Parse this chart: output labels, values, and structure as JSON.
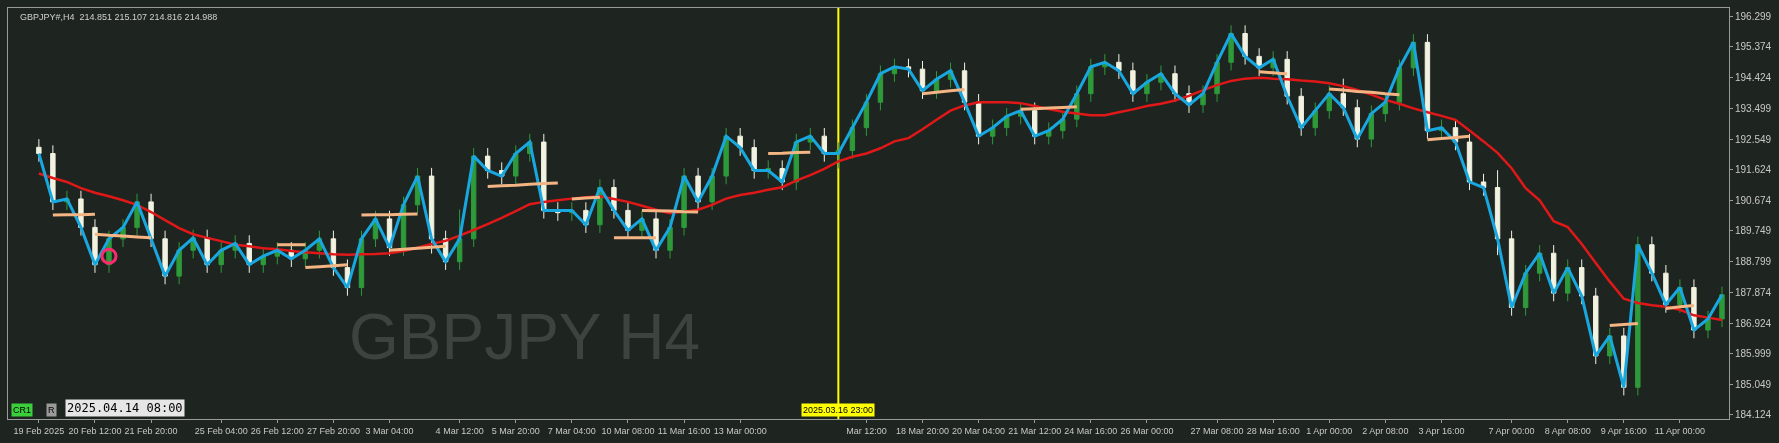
{
  "chart_data": {
    "type": "candlestick",
    "categories": [
      "19 Feb 2025",
      null,
      null,
      null,
      "20 Feb 12:00",
      null,
      null,
      null,
      "21 Feb 20:00",
      null,
      null,
      null,
      null,
      "25 Feb 04:00",
      null,
      null,
      null,
      "26 Feb 12:00",
      null,
      null,
      null,
      "27 Feb 20:00",
      null,
      null,
      null,
      "3 Mar 04:00",
      null,
      null,
      null,
      null,
      "4 Mar 12:00",
      null,
      null,
      null,
      "5 Mar 20:00",
      null,
      null,
      null,
      "7 Mar 04:00",
      null,
      null,
      null,
      "10 Mar 08:00",
      null,
      null,
      null,
      "11 Mar 16:00",
      null,
      null,
      null,
      "13 Mar 00:00",
      null,
      null,
      null,
      null,
      null,
      null,
      "2025.03.16 23:00",
      null,
      "Mar 12:00",
      null,
      null,
      null,
      "18 Mar 20:00",
      null,
      null,
      null,
      "20 Mar 04:00",
      null,
      null,
      null,
      "21 Mar 12:00",
      null,
      null,
      null,
      "24 Mar 16:00",
      null,
      null,
      null,
      "26 Mar 00:00",
      null,
      null,
      null,
      null,
      "27 Mar 08:00",
      null,
      null,
      null,
      "28 Mar 16:00",
      null,
      null,
      null,
      "1 Apr 00:00",
      null,
      null,
      null,
      "2 Apr 08:00",
      null,
      null,
      null,
      "3 Apr 16:00",
      null,
      null,
      null,
      null,
      "7 Apr 00:00",
      null,
      null,
      null,
      "8 Apr 08:00",
      null,
      null,
      null,
      "9 Apr 16:00",
      null,
      null,
      null,
      "11 Apr 00:00",
      null,
      null,
      null
    ],
    "ohlc": [
      [
        192.3,
        192.55,
        191.86,
        192.11
      ],
      [
        192.11,
        192.36,
        190.38,
        190.63
      ],
      [
        190.63,
        190.97,
        190.38,
        190.72
      ],
      [
        190.72,
        190.97,
        189.6,
        189.85
      ],
      [
        189.85,
        190.1,
        188.46,
        188.71
      ],
      [
        188.71,
        189.75,
        188.46,
        189.5
      ],
      [
        189.5,
        190.1,
        189.25,
        189.85
      ],
      [
        189.85,
        190.88,
        189.6,
        190.63
      ],
      [
        190.63,
        190.88,
        189.25,
        189.5
      ],
      [
        189.5,
        189.75,
        188.11,
        188.36
      ],
      [
        188.36,
        189.4,
        188.11,
        189.15
      ],
      [
        189.15,
        189.78,
        188.9,
        189.53
      ],
      [
        189.53,
        189.78,
        188.46,
        188.71
      ],
      [
        188.71,
        189.4,
        188.46,
        189.15
      ],
      [
        189.15,
        189.61,
        188.9,
        189.36
      ],
      [
        189.36,
        189.61,
        188.46,
        188.71
      ],
      [
        188.71,
        189.22,
        188.46,
        188.97
      ],
      [
        188.97,
        189.4,
        188.72,
        189.15
      ],
      [
        189.15,
        189.4,
        188.64,
        188.89
      ],
      [
        188.89,
        189.4,
        188.64,
        189.15
      ],
      [
        189.15,
        189.75,
        188.9,
        189.5
      ],
      [
        189.5,
        189.75,
        188.37,
        188.62
      ],
      [
        188.62,
        188.87,
        187.76,
        188.01
      ],
      [
        188.01,
        189.75,
        187.76,
        189.5
      ],
      [
        189.5,
        190.36,
        189.25,
        190.11
      ],
      [
        190.11,
        190.36,
        188.98,
        189.23
      ],
      [
        189.23,
        190.79,
        188.98,
        190.54
      ],
      [
        190.54,
        191.67,
        190.29,
        191.42
      ],
      [
        191.42,
        191.67,
        189.05,
        189.5
      ],
      [
        189.5,
        189.75,
        188.55,
        188.8
      ],
      [
        188.8,
        190.4,
        188.55,
        189.5
      ],
      [
        189.5,
        192.28,
        189.25,
        192.03
      ],
      [
        192.03,
        192.28,
        191.34,
        191.59
      ],
      [
        191.59,
        191.84,
        191.17,
        191.42
      ],
      [
        191.42,
        192.36,
        191.17,
        192.11
      ],
      [
        192.11,
        192.71,
        191.86,
        192.46
      ],
      [
        192.46,
        192.71,
        190.12,
        190.37
      ],
      [
        190.37,
        190.62,
        190.05,
        190.3
      ],
      [
        190.3,
        190.62,
        190.05,
        190.37
      ],
      [
        190.37,
        190.62,
        189.68,
        189.93
      ],
      [
        189.93,
        191.32,
        189.68,
        191.07
      ],
      [
        191.07,
        191.32,
        190.12,
        190.37
      ],
      [
        190.37,
        190.62,
        189.51,
        189.76
      ],
      [
        189.76,
        190.36,
        189.51,
        190.11
      ],
      [
        190.11,
        190.36,
        188.9,
        189.15
      ],
      [
        189.15,
        190.1,
        188.9,
        189.85
      ],
      [
        189.85,
        191.67,
        189.6,
        191.42
      ],
      [
        191.42,
        191.67,
        190.38,
        190.63
      ],
      [
        190.63,
        191.67,
        190.38,
        191.42
      ],
      [
        191.42,
        192.89,
        191.17,
        192.64
      ],
      [
        192.64,
        192.89,
        192.04,
        192.29
      ],
      [
        192.29,
        192.54,
        191.34,
        191.59
      ],
      [
        191.59,
        191.9,
        191.34,
        191.65
      ],
      [
        191.65,
        191.9,
        190.99,
        191.24
      ],
      [
        191.24,
        192.71,
        190.99,
        192.46
      ],
      [
        192.46,
        192.89,
        192.21,
        192.64
      ],
      [
        192.64,
        192.89,
        191.86,
        192.11
      ],
      [
        192.11,
        192.45,
        191.65,
        192.2
      ],
      [
        192.2,
        193.15,
        191.95,
        192.9
      ],
      [
        192.9,
        193.93,
        192.65,
        193.68
      ],
      [
        193.68,
        194.8,
        193.43,
        194.55
      ],
      [
        194.55,
        195.01,
        194.3,
        194.76
      ],
      [
        194.76,
        195.01,
        194.44,
        194.69
      ],
      [
        194.69,
        194.94,
        193.78,
        194.03
      ],
      [
        194.03,
        194.63,
        193.78,
        194.38
      ],
      [
        194.38,
        194.89,
        194.13,
        194.64
      ],
      [
        194.64,
        194.89,
        193.43,
        193.68
      ],
      [
        193.68,
        193.93,
        192.39,
        192.64
      ],
      [
        192.64,
        193.15,
        192.39,
        192.9
      ],
      [
        192.9,
        193.5,
        192.65,
        193.25
      ],
      [
        193.25,
        193.67,
        193.0,
        193.42
      ],
      [
        193.42,
        193.67,
        192.39,
        192.64
      ],
      [
        192.64,
        193.06,
        192.39,
        192.81
      ],
      [
        192.81,
        193.41,
        192.56,
        193.16
      ],
      [
        193.16,
        194.19,
        192.91,
        193.94
      ],
      [
        193.94,
        195.01,
        193.69,
        194.76
      ],
      [
        194.76,
        195.15,
        194.51,
        194.9
      ],
      [
        194.9,
        195.15,
        194.39,
        194.64
      ],
      [
        194.64,
        194.89,
        193.69,
        193.94
      ],
      [
        193.94,
        194.54,
        193.69,
        194.29
      ],
      [
        194.29,
        194.8,
        194.04,
        194.55
      ],
      [
        194.55,
        194.8,
        193.69,
        193.94
      ],
      [
        193.94,
        194.19,
        193.35,
        193.6
      ],
      [
        193.6,
        194.19,
        193.35,
        193.94
      ],
      [
        193.94,
        195.15,
        193.69,
        194.9
      ],
      [
        194.9,
        196.03,
        194.65,
        195.78
      ],
      [
        195.78,
        196.03,
        194.83,
        195.08
      ],
      [
        195.08,
        195.33,
        194.48,
        194.73
      ],
      [
        194.73,
        195.24,
        194.48,
        194.99
      ],
      [
        194.99,
        195.24,
        193.61,
        193.86
      ],
      [
        193.86,
        194.11,
        192.65,
        192.9
      ],
      [
        192.9,
        193.67,
        192.65,
        193.42
      ],
      [
        193.42,
        194.19,
        193.17,
        193.94
      ],
      [
        193.94,
        194.4,
        193.26,
        193.51
      ],
      [
        193.51,
        193.76,
        192.3,
        192.55
      ],
      [
        192.55,
        193.58,
        192.3,
        193.33
      ],
      [
        193.33,
        193.93,
        193.08,
        193.68
      ],
      [
        193.68,
        194.98,
        193.43,
        194.73
      ],
      [
        194.73,
        195.76,
        194.48,
        195.51
      ],
      [
        195.51,
        195.76,
        192.56,
        192.81
      ],
      [
        192.81,
        193.15,
        192.56,
        192.9
      ],
      [
        192.9,
        193.15,
        192.21,
        192.46
      ],
      [
        192.46,
        192.71,
        190.99,
        191.24
      ],
      [
        191.24,
        191.49,
        190.82,
        191.07
      ],
      [
        191.07,
        191.6,
        189.0,
        189.5
      ],
      [
        189.5,
        189.75,
        187.15,
        187.4
      ],
      [
        187.4,
        188.7,
        187.15,
        188.45
      ],
      [
        188.45,
        189.31,
        188.2,
        189.06
      ],
      [
        189.06,
        189.31,
        187.59,
        187.84
      ],
      [
        187.84,
        188.87,
        187.59,
        188.62
      ],
      [
        188.62,
        188.87,
        187.5,
        187.75
      ],
      [
        187.75,
        188.0,
        185.67,
        185.92
      ],
      [
        185.92,
        186.78,
        185.67,
        186.53
      ],
      [
        186.53,
        186.78,
        184.71,
        184.96
      ],
      [
        184.96,
        189.57,
        184.71,
        189.32
      ],
      [
        189.32,
        189.57,
        188.2,
        188.45
      ],
      [
        188.45,
        188.7,
        187.24,
        187.49
      ],
      [
        187.49,
        188.26,
        187.24,
        188.01
      ],
      [
        188.01,
        188.26,
        186.46,
        186.71
      ],
      [
        186.71,
        187.3,
        186.46,
        187.05
      ],
      [
        187.05,
        188.04,
        186.8,
        187.79
      ]
    ],
    "colors": [
      "#f2f2e0",
      "#f2f2e0",
      "#2e9a3a",
      "#f2f2e0",
      "#f2f2e0",
      "#2e9a3a",
      "#2e9a3a",
      "#2e9a3a",
      "#f2f2e0",
      "#f2f2e0",
      "#2e9a3a",
      "#2e9a3a",
      "#f2f2e0",
      "#2e9a3a",
      "#2e9a3a",
      "#f2f2e0",
      "#2e9a3a",
      "#2e9a3a",
      "#f2f2e0",
      "#2e9a3a",
      "#2e9a3a",
      "#f2f2e0",
      "#f2f2e0",
      "#2e9a3a",
      "#2e9a3a",
      "#f2f2e0",
      "#2e9a3a",
      "#2e9a3a",
      "#f2f2e0",
      "#f2f2e0",
      "#2e9a3a",
      "#2e9a3a",
      "#f2f2e0",
      "#f2f2e0",
      "#2e9a3a",
      "#2e9a3a",
      "#f2f2e0",
      "#f2f2e0",
      "#2e9a3a",
      "#f2f2e0",
      "#2e9a3a",
      "#f2f2e0",
      "#f2f2e0",
      "#2e9a3a",
      "#f2f2e0",
      "#2e9a3a",
      "#2e9a3a",
      "#f2f2e0",
      "#2e9a3a",
      "#2e9a3a",
      "#f2f2e0",
      "#f2f2e0",
      "#2e9a3a",
      "#f2f2e0",
      "#2e9a3a",
      "#2e9a3a",
      "#f2f2e0",
      "#2e9a3a",
      "#2e9a3a",
      "#2e9a3a",
      "#2e9a3a",
      "#2e9a3a",
      "#f2f2e0",
      "#f2f2e0",
      "#2e9a3a",
      "#2e9a3a",
      "#f2f2e0",
      "#f2f2e0",
      "#2e9a3a",
      "#2e9a3a",
      "#2e9a3a",
      "#f2f2e0",
      "#2e9a3a",
      "#2e9a3a",
      "#2e9a3a",
      "#2e9a3a",
      "#2e9a3a",
      "#f2f2e0",
      "#f2f2e0",
      "#2e9a3a",
      "#2e9a3a",
      "#f2f2e0",
      "#f2f2e0",
      "#2e9a3a",
      "#2e9a3a",
      "#2e9a3a",
      "#f2f2e0",
      "#f2f2e0",
      "#2e9a3a",
      "#f2f2e0",
      "#f2f2e0",
      "#2e9a3a",
      "#2e9a3a",
      "#f2f2e0",
      "#f2f2e0",
      "#2e9a3a",
      "#2e9a3a",
      "#2e9a3a",
      "#2e9a3a",
      "#f2f2e0",
      "#2e9a3a",
      "#f2f2e0",
      "#f2f2e0",
      "#f2f2e0",
      "#f2f2e0",
      "#f2f2e0",
      "#2e9a3a",
      "#2e9a3a",
      "#f2f2e0",
      "#2e9a3a",
      "#f2f2e0",
      "#f2f2e0",
      "#2e9a3a",
      "#f2f2e0",
      "#2e9a3a",
      "#f2f2e0",
      "#f2f2e0",
      "#2e9a3a",
      "#f2f2e0",
      "#2e9a3a",
      "#2e9a3a"
    ],
    "series": [
      {
        "type": "line",
        "color": "#e01818",
        "values": [
          191.5,
          191.36,
          191.24,
          191.05,
          190.91,
          190.8,
          190.68,
          190.54,
          190.32,
          190.07,
          189.83,
          189.64,
          189.53,
          189.43,
          189.32,
          189.27,
          189.21,
          189.18,
          189.13,
          189.09,
          189.06,
          189.03,
          189.01,
          189.03,
          189.04,
          189.06,
          189.13,
          189.23,
          189.34,
          189.44,
          189.6,
          189.77,
          189.95,
          190.14,
          190.35,
          190.56,
          190.63,
          190.68,
          190.73,
          190.77,
          190.8,
          190.72,
          190.63,
          190.51,
          190.39,
          190.28,
          190.33,
          190.39,
          190.54,
          190.73,
          190.84,
          190.91,
          191.0,
          191.08,
          191.28,
          191.45,
          191.64,
          191.87,
          192.01,
          192.11,
          192.27,
          192.48,
          192.58,
          192.85,
          193.14,
          193.42,
          193.58,
          193.68,
          193.68,
          193.68,
          193.65,
          193.56,
          193.47,
          193.39,
          193.33,
          193.28,
          193.28,
          193.37,
          193.46,
          193.56,
          193.63,
          193.73,
          193.87,
          194.05,
          194.2,
          194.33,
          194.4,
          194.43,
          194.4,
          194.38,
          194.34,
          194.31,
          194.26,
          194.17,
          194.05,
          193.91,
          193.75,
          193.63,
          193.49,
          193.37,
          193.26,
          193.14,
          192.81,
          192.48,
          192.13,
          191.66,
          191.05,
          190.68,
          190.04,
          189.86,
          189.34,
          188.76,
          188.19,
          187.67,
          187.54,
          187.47,
          187.42,
          187.33,
          187.16,
          187.09,
          187.02
        ]
      },
      {
        "type": "line",
        "color": "#19a7e0",
        "values": [
          192.11,
          190.63,
          190.72,
          189.85,
          188.71,
          189.5,
          189.85,
          190.63,
          189.5,
          188.36,
          189.15,
          189.53,
          188.71,
          189.15,
          189.36,
          188.71,
          188.97,
          189.15,
          188.89,
          189.15,
          189.5,
          188.62,
          188.01,
          189.5,
          190.11,
          189.23,
          190.54,
          191.42,
          189.5,
          188.8,
          189.5,
          192.03,
          191.59,
          191.42,
          192.11,
          192.46,
          190.37,
          190.37,
          190.37,
          189.93,
          191.07,
          190.37,
          189.76,
          190.11,
          189.15,
          189.85,
          191.42,
          190.63,
          191.42,
          192.64,
          192.29,
          191.59,
          191.59,
          191.24,
          192.46,
          192.64,
          192.11,
          192.11,
          192.9,
          193.68,
          194.55,
          194.76,
          194.69,
          194.03,
          194.38,
          194.64,
          193.68,
          192.64,
          192.9,
          193.25,
          193.42,
          192.64,
          192.81,
          193.16,
          193.94,
          194.76,
          194.9,
          194.64,
          193.94,
          194.29,
          194.55,
          193.94,
          193.6,
          193.94,
          194.9,
          195.78,
          195.08,
          194.73,
          194.99,
          193.86,
          192.9,
          193.42,
          193.94,
          193.51,
          192.55,
          193.33,
          193.68,
          194.73,
          195.51,
          192.81,
          192.9,
          192.46,
          191.24,
          191.07,
          189.5,
          187.4,
          188.45,
          189.06,
          187.84,
          188.62,
          187.75,
          185.92,
          186.53,
          184.96,
          189.32,
          188.45,
          187.49,
          188.01,
          186.71,
          187.05,
          187.79
        ]
      },
      {
        "type": "line",
        "color": "#f4b585",
        "values": [
          null,
          190.23,
          190.24,
          190.24,
          190.25,
          null,
          null,
          null,
          null,
          null,
          null,
          null,
          null,
          null,
          null,
          null,
          null,
          189.32,
          189.32,
          189.32,
          null,
          null,
          null,
          190.23,
          190.24,
          190.24,
          190.25,
          190.26,
          null,
          null,
          null,
          null,
          191.1,
          191.12,
          191.14,
          191.17,
          191.19,
          191.21,
          null,
          null,
          null,
          189.53,
          189.53,
          189.53,
          189.53,
          null,
          null,
          null,
          null,
          null,
          null,
          null,
          192.11,
          192.12,
          192.14,
          192.15,
          null,
          null,
          null,
          null,
          null,
          null,
          null,
          null,
          null,
          null,
          null,
          null,
          null,
          null,
          193.46,
          193.48,
          193.5,
          193.52,
          193.54,
          null,
          null,
          null,
          null,
          null,
          null,
          null,
          null,
          null,
          null,
          null,
          null,
          null,
          null,
          null,
          null,
          null,
          194.08,
          194.05,
          194.01,
          193.98,
          193.94,
          193.91,
          null,
          null,
          null,
          null,
          null,
          null,
          null,
          null,
          null,
          null,
          null,
          null,
          null,
          null,
          186.85,
          186.88,
          186.91,
          null,
          null,
          null,
          null,
          null,
          null
        ]
      },
      {
        "type": "line",
        "color": "#f4b585",
        "values": [
          null,
          null,
          null,
          null,
          189.64,
          189.61,
          189.59,
          189.56,
          189.53,
          null,
          null,
          null,
          null,
          null,
          null,
          null,
          null,
          null,
          null,
          188.62,
          188.65,
          188.68,
          188.71,
          null,
          null,
          189.15,
          189.18,
          189.21,
          189.24,
          189.27,
          null,
          null,
          null,
          null,
          null,
          null,
          null,
          null,
          190.72,
          190.75,
          190.77,
          null,
          null,
          190.37,
          190.36,
          190.35,
          190.33,
          190.32,
          null,
          null,
          null,
          null,
          null,
          null,
          null,
          null,
          null,
          null,
          null,
          null,
          null,
          null,
          null,
          193.94,
          193.98,
          194.03,
          194.07,
          null,
          null,
          null,
          null,
          null,
          null,
          null,
          null,
          null,
          null,
          null,
          null,
          null,
          null,
          null,
          null,
          null,
          null,
          null,
          null,
          194.61,
          194.58,
          194.54,
          null,
          null,
          null,
          null,
          null,
          null,
          null,
          null,
          null,
          192.53,
          192.57,
          192.6,
          192.64,
          null,
          null,
          null,
          null,
          null,
          null,
          null,
          null,
          null,
          null,
          null,
          null,
          null,
          187.37,
          187.42,
          187.46,
          null,
          null
        ]
      },
      {
        "type": "scatter",
        "color": "#ff2a6d",
        "marker": "circle",
        "values": [
          null,
          null,
          null,
          null,
          null,
          188.97,
          null,
          null,
          null,
          null,
          null,
          null,
          null,
          null,
          null,
          null,
          null,
          null,
          null,
          null,
          null,
          null,
          null,
          null,
          null,
          null,
          null,
          null,
          null,
          null,
          null,
          null,
          null,
          null,
          null,
          null,
          null,
          null,
          null,
          null,
          null,
          null,
          null,
          null,
          null,
          null,
          null,
          null,
          null,
          null,
          null,
          null,
          null,
          null,
          null,
          null,
          null,
          null,
          null,
          null,
          null,
          null,
          null,
          null,
          null,
          null,
          null,
          null,
          null,
          null,
          null,
          null,
          null,
          null,
          null,
          null,
          null,
          null,
          null,
          null,
          null,
          null,
          null,
          null,
          null,
          null,
          null,
          null,
          null,
          null,
          null,
          null,
          null,
          null,
          null,
          null,
          null,
          null,
          null,
          null,
          null,
          null,
          null,
          null,
          null,
          null,
          null,
          null,
          null,
          null,
          null,
          null,
          null,
          null,
          null,
          null,
          null,
          null,
          null,
          null,
          null
        ]
      }
    ],
    "ylim": [
      183.99,
      196.56
    ],
    "yticks": [
      184.124,
      185.049,
      185.999,
      186.924,
      187.874,
      188.799,
      189.749,
      190.674,
      191.624,
      192.549,
      193.499,
      194.424,
      195.374,
      196.299
    ],
    "ref_lines": [
      {
        "axis": "x",
        "value": "2025.03.16 23:00",
        "color": "#ffff00"
      }
    ],
    "annotations": [
      "GBPJPY#,H4  214.851 215.107 214.816 214.988",
      "GBPJPY H4",
      "CR1",
      "R",
      "2025.04.14 08:00"
    ]
  }
}
